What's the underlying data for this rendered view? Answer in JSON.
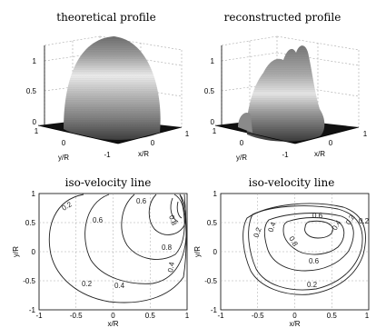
{
  "panels": {
    "top_left": {
      "title": "theoretical profile"
    },
    "top_right": {
      "title": "reconstructed profile"
    },
    "bottom_left": {
      "title": "iso-velocity line"
    },
    "bottom_right": {
      "title": "iso-velocity line"
    }
  },
  "colors": {
    "axis": "#000000",
    "grid": "#a8a8a8",
    "contour": "#222222"
  },
  "chart_data": [
    {
      "type": "surface",
      "title": "theoretical profile",
      "xlabel": "x/R",
      "ylabel": "y/R",
      "zticks": [
        "0",
        "0.5",
        "1"
      ],
      "xticks": [
        "-1",
        "0",
        "1"
      ],
      "yticks": [
        "1",
        "0"
      ],
      "xlim": [
        -1,
        1
      ],
      "ylim": [
        -1,
        1
      ],
      "zlim": [
        0,
        1
      ],
      "profile": "paraboloid, peak 1.0 at center"
    },
    {
      "type": "surface",
      "title": "reconstructed profile",
      "xlabel": "x/R",
      "ylabel": "y/R",
      "zticks": [
        "0",
        "0.5",
        "1"
      ],
      "xticks": [
        "-1",
        "0",
        "1"
      ],
      "yticks": [
        "1",
        "0"
      ],
      "xlim": [
        -1,
        1
      ],
      "ylim": [
        -1,
        1
      ],
      "zlim": [
        0,
        1
      ],
      "profile": "irregular peaked profile, maximum about 1.0"
    },
    {
      "type": "contour",
      "title": "iso-velocity line",
      "xlabel": "x/R",
      "ylabel": "y/R",
      "xlim": [
        -1,
        1
      ],
      "ylim": [
        -1,
        1
      ],
      "xticks": [
        "-1",
        "-0.5",
        "0",
        "0.5",
        "1"
      ],
      "yticks": [
        "-1",
        "-0.5",
        "0",
        "0.5",
        "1"
      ],
      "levels": [
        0.2,
        0.4,
        0.6,
        0.8
      ],
      "labels": [
        "0.2",
        "0.4",
        "0.6",
        "0.8",
        "0.2",
        "0.4",
        "0.6",
        "0.8"
      ],
      "grid": true
    },
    {
      "type": "contour",
      "title": "iso-velocity line",
      "xlabel": "x/R",
      "ylabel": "y/R",
      "xlim": [
        -1,
        1
      ],
      "ylim": [
        -1,
        1
      ],
      "xticks": [
        "-1",
        "-0.5",
        "0",
        "0.5",
        "1"
      ],
      "yticks": [
        "-1",
        "-0.5",
        "0",
        "0.5",
        "1"
      ],
      "levels": [
        0.2,
        0.4,
        0.6,
        0.8
      ],
      "labels": [
        "0.6",
        "0.4",
        "0.2",
        "0.6",
        "0.8",
        "0.2",
        "0.4",
        "0.2",
        "0.2"
      ],
      "grid": true
    }
  ]
}
